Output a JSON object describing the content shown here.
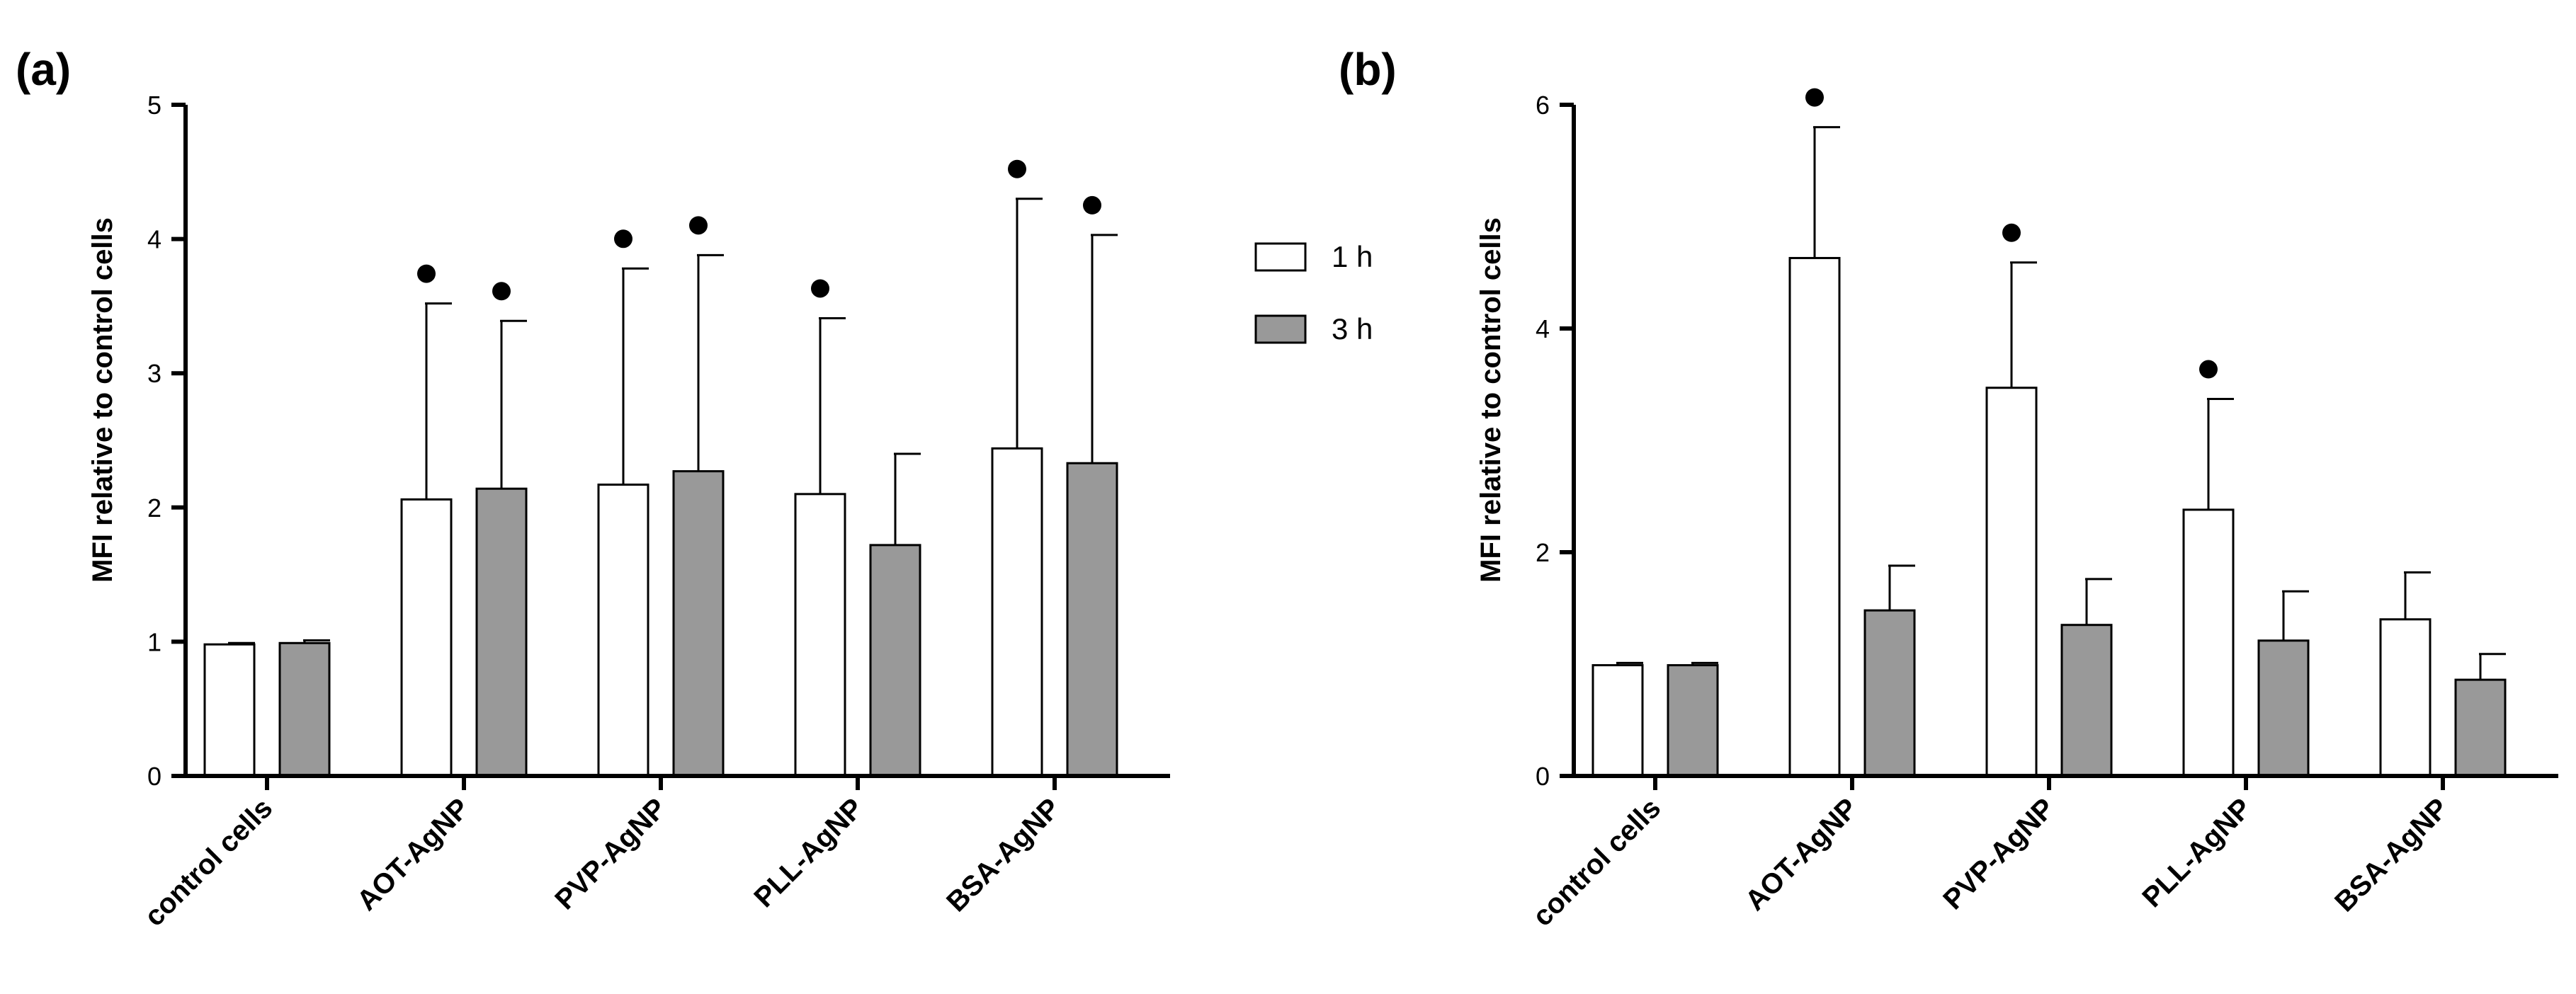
{
  "chart_data": [
    {
      "type": "bar",
      "panel_label": "(a)",
      "categories": [
        "control cells",
        "AOT-AgNP",
        "PVP-AgNP",
        "PLL-AgNP",
        "BSA-AgNP"
      ],
      "series": [
        {
          "name": "1 h",
          "values": [
            0.98,
            2.06,
            2.17,
            2.1,
            2.44
          ],
          "errors": [
            0.01,
            1.46,
            1.61,
            1.31,
            1.86
          ],
          "significant": [
            false,
            true,
            true,
            true,
            true
          ]
        },
        {
          "name": "3 h",
          "values": [
            0.99,
            2.14,
            2.27,
            1.72,
            2.33
          ],
          "errors": [
            0.02,
            1.25,
            1.61,
            0.68,
            1.7
          ],
          "significant": [
            false,
            true,
            true,
            false,
            true
          ]
        }
      ],
      "ylabel": "MFI relative to control cells",
      "xlabel": "",
      "ylim": [
        0,
        5
      ],
      "yticks": [
        "0",
        "1",
        "2",
        "3",
        "4",
        "5"
      ]
    },
    {
      "type": "bar",
      "panel_label": "(b)",
      "categories": [
        "control cells",
        "AOT-AgNP",
        "PVP-AgNP",
        "PLL-AgNP",
        "BSA-AgNP"
      ],
      "series": [
        {
          "name": "1 h",
          "values": [
            0.99,
            4.63,
            3.47,
            2.38,
            1.4
          ],
          "errors": [
            0.02,
            1.17,
            1.12,
            0.99,
            0.42
          ],
          "significant": [
            false,
            true,
            true,
            true,
            false
          ]
        },
        {
          "name": "3 h",
          "values": [
            0.99,
            1.48,
            1.35,
            1.21,
            0.86
          ],
          "errors": [
            0.02,
            0.4,
            0.41,
            0.44,
            0.23
          ],
          "significant": [
            false,
            false,
            false,
            false,
            false
          ]
        }
      ],
      "ylabel": "MFI relative to control cells",
      "xlabel": "",
      "ylim": [
        0,
        6
      ],
      "yticks": [
        "0",
        "2",
        "4",
        "6"
      ]
    }
  ],
  "legend": {
    "entries": [
      {
        "label": "1 h",
        "color": "#ffffff"
      },
      {
        "label": "3 h",
        "color": "#999999"
      }
    ]
  },
  "colors": {
    "bar_1h": "#ffffff",
    "bar_3h": "#999999",
    "stroke": "#000000"
  }
}
